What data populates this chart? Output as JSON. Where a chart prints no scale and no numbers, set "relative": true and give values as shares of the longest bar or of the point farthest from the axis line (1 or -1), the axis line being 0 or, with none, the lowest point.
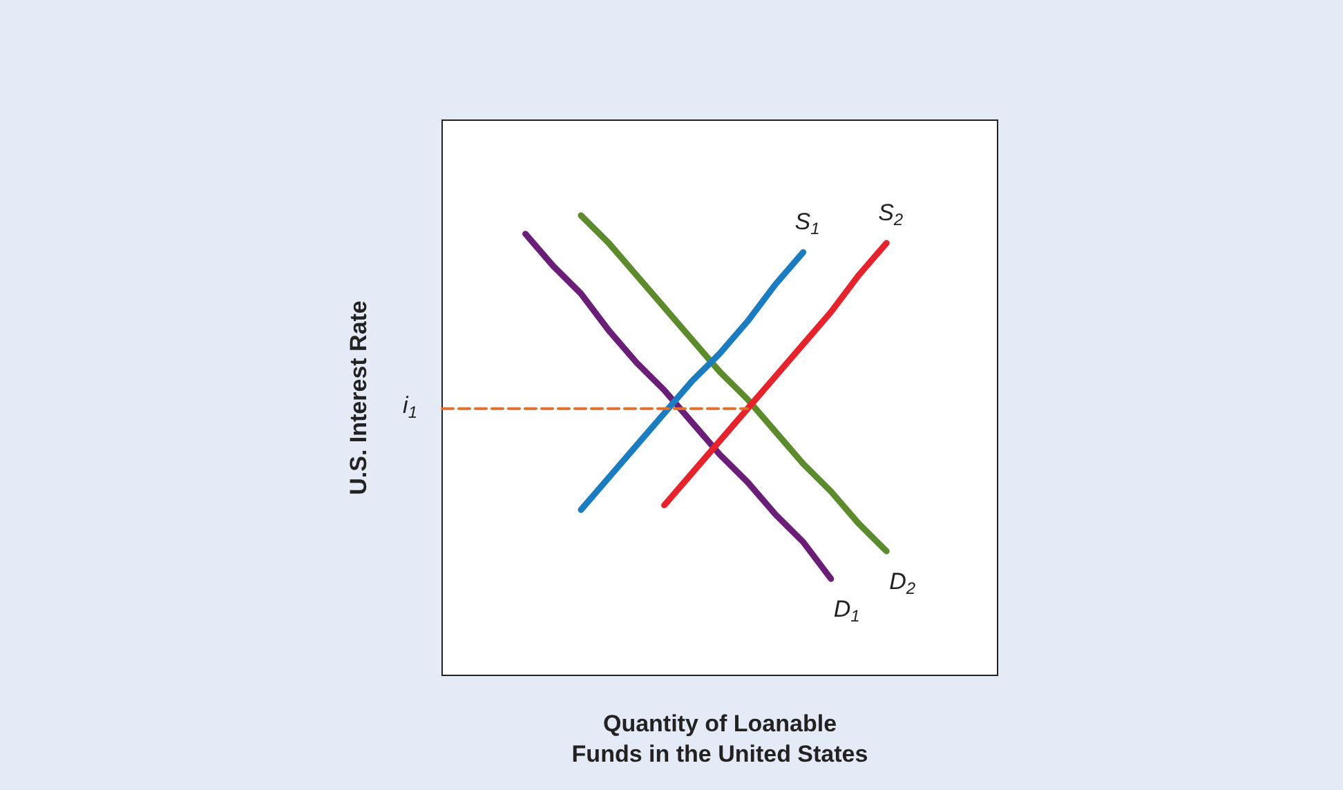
{
  "chart_data": {
    "type": "line",
    "relative": true,
    "marker": "none",
    "line_style": "solid",
    "grid": false,
    "xlabel": "Quantity of Loanable Funds in the United States",
    "ylabel": "U.S. Interest Rate",
    "categories": [
      null,
      null,
      null,
      null,
      null,
      null,
      null,
      null,
      null,
      null,
      null,
      null,
      null,
      null,
      null,
      null,
      null,
      null,
      null,
      null,
      null
    ],
    "series": [
      {
        "name": "D$_{1}$",
        "color": "#6b1e78",
        "values": [
          null,
          null,
          null,
          0.96,
          0.89,
          0.83,
          0.75,
          0.68,
          0.62,
          0.55,
          0.48,
          0.42,
          0.35,
          0.29,
          0.21,
          null,
          null,
          null,
          null,
          null,
          null
        ]
      },
      {
        "name": "D$_{2}$",
        "color": "#5b8b2b",
        "values": [
          null,
          null,
          null,
          null,
          null,
          1,
          0.94,
          0.87,
          0.8,
          0.73,
          0.66,
          0.6,
          0.53,
          0.46,
          0.4,
          0.33,
          0.27,
          null,
          null,
          null,
          null
        ]
      },
      {
        "name": "S$_{1}$",
        "color": "#1a7cc1",
        "values": [
          null,
          null,
          null,
          null,
          null,
          0.36,
          0.43,
          0.5,
          0.57,
          0.64,
          0.7,
          0.77,
          0.85,
          0.92,
          null,
          null,
          null,
          null,
          null,
          null,
          null
        ]
      },
      {
        "name": "S$_{2}$",
        "color": "#e8222b",
        "values": [
          null,
          null,
          null,
          null,
          null,
          null,
          null,
          null,
          0.37,
          0.44,
          0.51,
          0.58,
          0.65,
          0.72,
          0.79,
          0.87,
          0.94,
          null,
          null,
          null,
          null
        ]
      },
      {
        "color": "#e0702e",
        "line_style": "dashed",
        "values": [
          0.58,
          0.58,
          0.58,
          0.58,
          0.58,
          0.58,
          0.58,
          0.58,
          0.58,
          0.58,
          0.58,
          0.58,
          null,
          null,
          null,
          null,
          null,
          null,
          null,
          null,
          null
        ]
      }
    ],
    "annotations": [
      "i$_{1}$"
    ]
  }
}
